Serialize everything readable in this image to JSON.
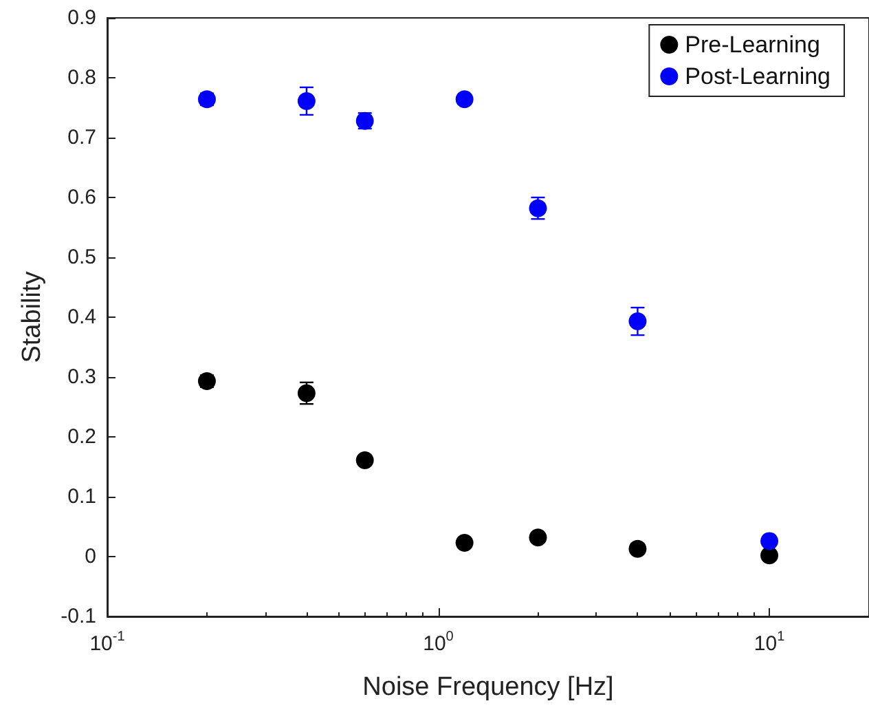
{
  "chart_data": {
    "type": "scatter",
    "xlabel": "Noise Frequency [Hz]",
    "ylabel": "Stability",
    "log": "x",
    "xlim": [
      0.1,
      20
    ],
    "xticks": [
      {
        "value": 0.1,
        "label": "10$^{-1}$"
      },
      {
        "value": 1,
        "label": "10$^{0}$"
      },
      {
        "value": 10,
        "label": "10$^{1}$"
      }
    ],
    "ylim": [
      -0.1,
      0.9
    ],
    "yticks": [
      -0.1,
      0,
      0.1,
      0.2,
      0.3,
      0.4,
      0.5,
      0.6,
      0.7,
      0.8,
      0.9
    ],
    "grid": false,
    "legend": "top right",
    "marker": "circle",
    "x": [
      0.2,
      0.4,
      0.6,
      1.2,
      2,
      4,
      10
    ],
    "series": [
      {
        "name": "Pre-Learning",
        "color": "#000000",
        "values": [
          0.293,
          0.273,
          0.161,
          0.023,
          0.032,
          0.013,
          0.002
        ],
        "errors": [
          0.01,
          0.018,
          0.006,
          null,
          null,
          null,
          null
        ]
      },
      {
        "name": "Post-Learning",
        "color": "#0000ff",
        "values": [
          0.764,
          0.761,
          0.728,
          0.764,
          0.582,
          0.393,
          0.026
        ],
        "errors": [
          0.01,
          0.023,
          0.013,
          0.008,
          0.018,
          0.023,
          null
        ]
      }
    ]
  }
}
